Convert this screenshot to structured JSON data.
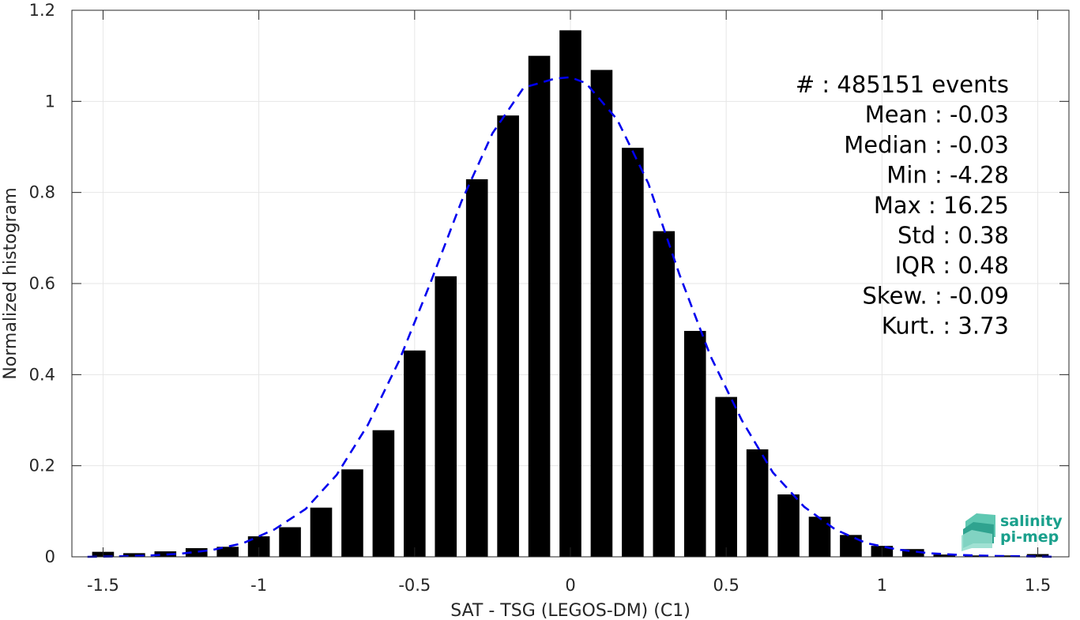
{
  "chart_data": {
    "type": "bar",
    "xlabel": "SAT - TSG (LEGOS-DM) (C1)",
    "ylabel": "Normalized histogram",
    "xlim": [
      -1.6,
      1.6
    ],
    "ylim": [
      0,
      1.2
    ],
    "xticks": [
      -1.5,
      -1,
      -0.5,
      0,
      0.5,
      1,
      1.5
    ],
    "xtick_labels": [
      "-1.5",
      "-1",
      "-0.5",
      "0",
      "0.5",
      "1",
      "1.5"
    ],
    "yticks": [
      0,
      0.2,
      0.4,
      0.6,
      0.8,
      1,
      1.2
    ],
    "ytick_labels": [
      "0",
      "0.2",
      "0.4",
      "0.6",
      "0.8",
      "1",
      "1.2"
    ],
    "grid": true,
    "bar_color": "#000000",
    "bar_width": 0.07,
    "bars": {
      "x": [
        -1.5,
        -1.4,
        -1.3,
        -1.2,
        -1.1,
        -1.0,
        -0.9,
        -0.8,
        -0.7,
        -0.6,
        -0.5,
        -0.4,
        -0.3,
        -0.2,
        -0.1,
        0.0,
        0.1,
        0.2,
        0.3,
        0.4,
        0.5,
        0.6,
        0.7,
        0.8,
        0.9,
        1.0,
        1.1,
        1.2,
        1.3,
        1.4,
        1.5
      ],
      "values": [
        0.011,
        0.008,
        0.012,
        0.019,
        0.022,
        0.045,
        0.065,
        0.108,
        0.192,
        0.278,
        0.453,
        0.616,
        0.829,
        0.969,
        1.1,
        1.156,
        1.069,
        0.898,
        0.715,
        0.496,
        0.351,
        0.236,
        0.137,
        0.088,
        0.048,
        0.024,
        0.017,
        0.005,
        0.003,
        0.003,
        0.006
      ]
    },
    "fit_line": {
      "style": "dashed",
      "color": "#0000ee",
      "x": [
        -1.55,
        -1.45,
        -1.35,
        -1.25,
        -1.15,
        -1.05,
        -0.95,
        -0.85,
        -0.75,
        -0.65,
        -0.55,
        -0.45,
        -0.35,
        -0.25,
        -0.15,
        -0.05,
        0.0,
        0.05,
        0.15,
        0.25,
        0.35,
        0.45,
        0.55,
        0.65,
        0.75,
        0.85,
        0.95,
        1.05,
        1.15,
        1.25,
        1.35,
        1.45,
        1.55
      ],
      "y": [
        0.0,
        0.001,
        0.003,
        0.007,
        0.015,
        0.03,
        0.06,
        0.105,
        0.18,
        0.29,
        0.43,
        0.6,
        0.78,
        0.93,
        1.03,
        1.05,
        1.053,
        1.04,
        0.96,
        0.82,
        0.62,
        0.44,
        0.3,
        0.185,
        0.11,
        0.06,
        0.03,
        0.016,
        0.008,
        0.004,
        0.002,
        0.001,
        0.0
      ]
    },
    "stats_text": [
      "#  : 485151 events",
      "Mean : -0.03",
      "Median : -0.03",
      "Min : -4.28",
      "Max : 16.25",
      "Std : 0.38",
      "IQR : 0.48",
      "Skew. : -0.09",
      "Kurt. : 3.73"
    ]
  },
  "logo": {
    "line1": "salinity",
    "line2": "pi-mep",
    "color": "#1aa08c"
  }
}
